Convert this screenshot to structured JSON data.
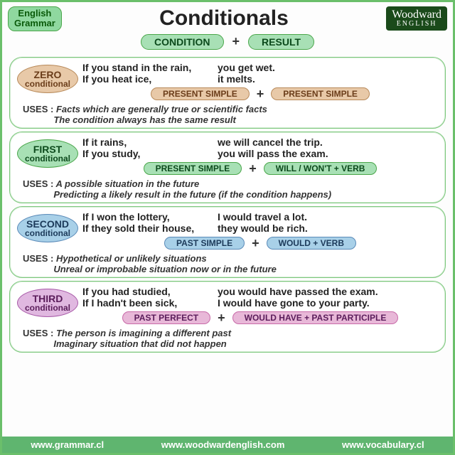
{
  "header": {
    "badge_line1": "English",
    "badge_line2": "Grammar",
    "title": "Conditionals",
    "logo_main": "Woodward",
    "logo_sub": "ENGLISH"
  },
  "subheader": {
    "condition": "CONDITION",
    "plus": "+",
    "result": "RESULT"
  },
  "sections": [
    {
      "label_big": "ZERO",
      "label_small": "conditional",
      "oval_bg": "#e8c9a8",
      "oval_border": "#b88a5a",
      "oval_text": "#6b3d1a",
      "ex1_cond": "If you stand in the rain,",
      "ex1_res": "you get wet.",
      "ex2_cond": "If you heat ice,",
      "ex2_res": "it melts.",
      "tpill_bg": "#e8c9a8",
      "tpill_border": "#b88a5a",
      "tpill_text": "#6b3d1a",
      "tense_left": "PRESENT SIMPLE",
      "tense_plus": "+",
      "tense_right": "PRESENT SIMPLE",
      "uses1": "Facts which are generally true or scientific facts",
      "uses2": "The condition always has the same result"
    },
    {
      "label_big": "FIRST",
      "label_small": "conditional",
      "oval_bg": "#a8e0b5",
      "oval_border": "#4aa64a",
      "oval_text": "#0c4a1c",
      "ex1_cond": "If it rains,",
      "ex1_res": "we will cancel the trip.",
      "ex2_cond": "If you study,",
      "ex2_res": "you will pass the exam.",
      "tpill_bg": "#a8e0b5",
      "tpill_border": "#4aa64a",
      "tpill_text": "#0c4a1c",
      "tense_left": "PRESENT SIMPLE",
      "tense_plus": "+",
      "tense_right": "WILL / WON'T + VERB",
      "uses1": "A possible situation in the future",
      "uses2": "Predicting a likely result in the future (if the condition happens)"
    },
    {
      "label_big": "SECOND",
      "label_small": "conditional",
      "oval_bg": "#a8d0e8",
      "oval_border": "#5a8ab8",
      "oval_text": "#1c3a5a",
      "ex1_cond": "If I won the lottery,",
      "ex1_res": "I would travel a lot.",
      "ex2_cond": "If they sold their house,",
      "ex2_res": "they would be rich.",
      "tpill_bg": "#a8d0e8",
      "tpill_border": "#5a8ab8",
      "tpill_text": "#1c3a5a",
      "tense_left": "PAST SIMPLE",
      "tense_plus": "+",
      "tense_right": "WOULD + VERB",
      "uses1": "Hypothetical or unlikely situations",
      "uses2": "Unreal or improbable situation now or in the future"
    },
    {
      "label_big": "THIRD",
      "label_small": "conditional",
      "oval_bg": "#e0b8e0",
      "oval_border": "#a85aa8",
      "oval_text": "#5a1c5a",
      "ex1_cond": "If you had studied,",
      "ex1_res": "you would have passed the exam.",
      "ex2_cond": "If I hadn't been sick,",
      "ex2_res": "I would have gone to your party.",
      "tpill_bg": "#e8b8d8",
      "tpill_border": "#c86aa8",
      "tpill_text": "#5a1c5a",
      "tense_left": "PAST PERFECT",
      "tense_plus": "+",
      "tense_right": "WOULD HAVE + PAST PARTICIPLE",
      "uses1": "The person is imagining a different past",
      "uses2": "Imaginary situation that did not happen"
    }
  ],
  "uses_label": "USES :",
  "footer": {
    "link1": "www.grammar.cl",
    "link2": "www.woodwardenglish.com",
    "link3": "www.vocabulary.cl"
  }
}
